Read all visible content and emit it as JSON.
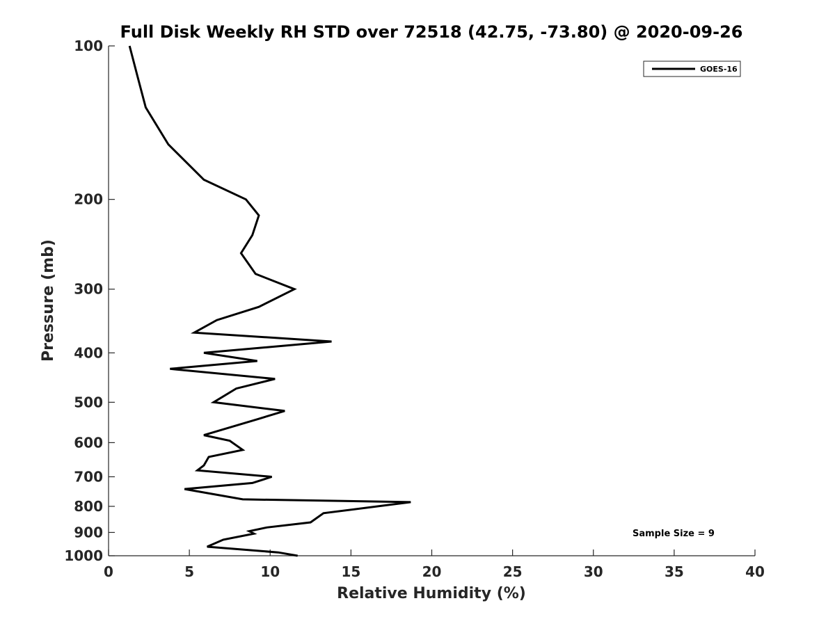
{
  "chart_data": {
    "type": "line",
    "title": "Full Disk Weekly RH STD over 72518 (42.75, -73.80) @ 2020-09-26",
    "xlabel": "Relative Humidity (%)",
    "ylabel": "Pressure (mb)",
    "xlim": [
      0,
      40
    ],
    "ylim": [
      100,
      1000
    ],
    "yscale": "log",
    "y_reversed": true,
    "grid": false,
    "legend_position": "top-right",
    "x_ticks": [
      0,
      5,
      10,
      15,
      20,
      25,
      30,
      35,
      40
    ],
    "y_ticks": [
      100,
      200,
      300,
      400,
      500,
      600,
      700,
      800,
      900,
      1000
    ],
    "annotation": "Sample Size = 9",
    "series": [
      {
        "name": "GOES-16",
        "color": "#000000",
        "x": [
          1.3,
          1.8,
          2.3,
          3.7,
          5.9,
          8.5,
          9.3,
          8.9,
          8.2,
          9.1,
          11.5,
          9.3,
          6.7,
          5.3,
          13.8,
          5.9,
          9.2,
          3.8,
          10.3,
          7.9,
          6.5,
          10.9,
          9.2,
          5.9,
          7.5,
          8.3,
          6.2,
          5.9,
          5.5,
          10.1,
          8.9,
          4.7,
          8.3,
          18.7,
          13.3,
          12.5,
          9.8,
          8.7,
          9.0,
          7.1,
          6.1,
          10.5,
          11.7
        ],
        "y": [
          100,
          115,
          132,
          156,
          183,
          200,
          215,
          235,
          255,
          280,
          300,
          325,
          345,
          365,
          380,
          400,
          415,
          430,
          450,
          470,
          500,
          520,
          540,
          580,
          595,
          620,
          640,
          665,
          680,
          700,
          720,
          740,
          775,
          785,
          825,
          860,
          880,
          895,
          905,
          930,
          960,
          985,
          1000
        ]
      }
    ]
  }
}
